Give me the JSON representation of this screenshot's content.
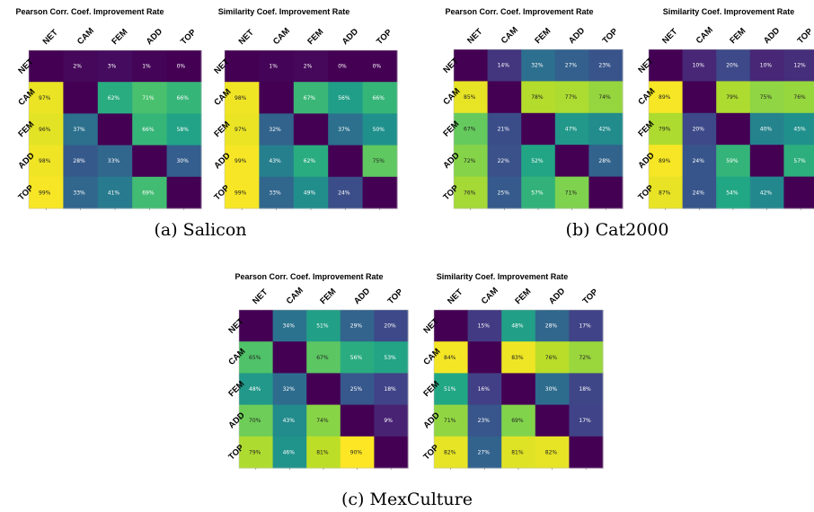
{
  "chart_data": [
    {
      "type": "heatmap",
      "group": "salicon",
      "title": "Pearson Corr. Coef. Improvement Rate",
      "categories": [
        "NET",
        "CAM",
        "FEM",
        "ADD",
        "TOP"
      ],
      "values": [
        [
          null,
          2,
          3,
          1,
          0
        ],
        [
          97,
          null,
          62,
          71,
          66
        ],
        [
          96,
          37,
          null,
          66,
          58
        ],
        [
          98,
          28,
          33,
          null,
          30
        ],
        [
          99,
          33,
          41,
          69,
          null
        ]
      ],
      "labels": [
        [
          "",
          "2%",
          "3%",
          "1%",
          "0%"
        ],
        [
          "97%",
          "",
          "62%",
          "71%",
          "66%"
        ],
        [
          "96%",
          "37%",
          "",
          "66%",
          "58%"
        ],
        [
          "98%",
          "28%",
          "33%",
          "",
          "30%"
        ],
        [
          "99%",
          "33%",
          "41%",
          "69%",
          ""
        ]
      ],
      "colormap": "viridis",
      "vlim": [
        0,
        100
      ]
    },
    {
      "type": "heatmap",
      "group": "salicon",
      "title": "Similarity  Coef. Improvement Rate",
      "categories": [
        "NET",
        "CAM",
        "FEM",
        "ADD",
        "TOP"
      ],
      "values": [
        [
          null,
          1,
          2,
          0,
          0
        ],
        [
          98,
          null,
          67,
          56,
          66
        ],
        [
          97,
          32,
          null,
          37,
          50
        ],
        [
          99,
          43,
          62,
          null,
          75
        ],
        [
          99,
          33,
          49,
          24,
          null
        ]
      ],
      "labels": [
        [
          "",
          "1%",
          "2%",
          "0%",
          "0%"
        ],
        [
          "98%",
          "",
          "67%",
          "56%",
          "66%"
        ],
        [
          "97%",
          "32%",
          "",
          "37%",
          "50%"
        ],
        [
          "99%",
          "43%",
          "62%",
          "",
          "75%"
        ],
        [
          "99%",
          "33%",
          "49%",
          "24%",
          ""
        ]
      ],
      "colormap": "viridis",
      "vlim": [
        0,
        100
      ]
    },
    {
      "type": "heatmap",
      "group": "cat2000",
      "title": "Pearson Corr. Coef. Improvement Rate",
      "categories": [
        "NET",
        "CAM",
        "FEM",
        "ADD",
        "TOP"
      ],
      "values": [
        [
          null,
          14,
          32,
          27,
          23
        ],
        [
          85,
          null,
          78,
          77,
          74
        ],
        [
          67,
          21,
          null,
          47,
          42
        ],
        [
          72,
          22,
          52,
          null,
          28
        ],
        [
          76,
          25,
          57,
          71,
          null
        ]
      ],
      "labels": [
        [
          "",
          "14%",
          "32%",
          "27%",
          "23%"
        ],
        [
          "85%",
          "",
          "78%",
          "77%",
          "74%"
        ],
        [
          "67%",
          "21%",
          "",
          "47%",
          "42%"
        ],
        [
          "72%",
          "22%",
          "52%",
          "",
          "28%"
        ],
        [
          "76%",
          "25%",
          "57%",
          "71%",
          ""
        ]
      ],
      "colormap": "viridis",
      "vlim": [
        0,
        88
      ]
    },
    {
      "type": "heatmap",
      "group": "cat2000",
      "title": "Similarity  Coef. Improvement Rate",
      "categories": [
        "NET",
        "CAM",
        "FEM",
        "ADD",
        "TOP"
      ],
      "values": [
        [
          null,
          10,
          20,
          10,
          12
        ],
        [
          89,
          null,
          79,
          75,
          76
        ],
        [
          79,
          20,
          null,
          40,
          45
        ],
        [
          89,
          24,
          59,
          null,
          57
        ],
        [
          87,
          24,
          54,
          42,
          null
        ]
      ],
      "labels": [
        [
          "",
          "10%",
          "20%",
          "10%",
          "12%"
        ],
        [
          "89%",
          "",
          "79%",
          "75%",
          "76%"
        ],
        [
          "79%",
          "20%",
          "",
          "40%",
          "45%"
        ],
        [
          "89%",
          "24%",
          "59%",
          "",
          "57%"
        ],
        [
          "87%",
          "24%",
          "54%",
          "42%",
          ""
        ]
      ],
      "colormap": "viridis",
      "vlim": [
        0,
        90
      ]
    },
    {
      "type": "heatmap",
      "group": "mexculture",
      "title": "Pearson Corr. Coef. Improvement Rate",
      "categories": [
        "NET",
        "CAM",
        "FEM",
        "ADD",
        "TOP"
      ],
      "values": [
        [
          null,
          34,
          51,
          29,
          20
        ],
        [
          65,
          null,
          67,
          56,
          53
        ],
        [
          48,
          32,
          null,
          25,
          18
        ],
        [
          70,
          43,
          74,
          null,
          9
        ],
        [
          79,
          46,
          81,
          90,
          null
        ]
      ],
      "labels": [
        [
          "",
          "34%",
          "51%",
          "29%",
          "20%"
        ],
        [
          "65%",
          "",
          "67%",
          "56%",
          "53%"
        ],
        [
          "48%",
          "32%",
          "",
          "25%",
          "18%"
        ],
        [
          "70%",
          "43%",
          "74%",
          "",
          "9%"
        ],
        [
          "79%",
          "46%",
          "81%",
          "90%",
          ""
        ]
      ],
      "colormap": "viridis",
      "vlim": [
        0,
        90
      ]
    },
    {
      "type": "heatmap",
      "group": "mexculture",
      "title": "Similarity  Coef. Improvement Rate",
      "categories": [
        "NET",
        "CAM",
        "FEM",
        "ADD",
        "TOP"
      ],
      "values": [
        [
          null,
          15,
          48,
          28,
          17
        ],
        [
          84,
          null,
          83,
          76,
          72
        ],
        [
          51,
          16,
          null,
          30,
          18
        ],
        [
          71,
          23,
          69,
          null,
          17
        ],
        [
          82,
          27,
          81,
          82,
          null
        ]
      ],
      "labels": [
        [
          "",
          "15%",
          "48%",
          "28%",
          "17%"
        ],
        [
          "84%",
          "",
          "83%",
          "76%",
          "72%"
        ],
        [
          "51%",
          "16%",
          "",
          "30%",
          "18%"
        ],
        [
          "71%",
          "23%",
          "69%",
          "",
          "17%"
        ],
        [
          "82%",
          "27%",
          "81%",
          "82%",
          ""
        ]
      ],
      "colormap": "viridis",
      "vlim": [
        0,
        85
      ]
    }
  ],
  "captions": {
    "salicon": "(a) Salicon",
    "cat2000": "(b) Cat2000",
    "mexculture": "(c) MexCulture"
  }
}
